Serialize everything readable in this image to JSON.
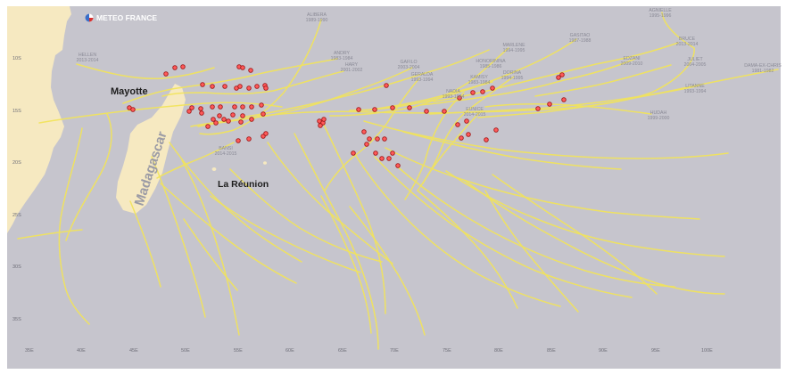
{
  "brand": "METEO FRANCE",
  "colors": {
    "ocean": "#c6c5cd",
    "land": "#f6e9c1",
    "track": "#f2e45a",
    "marker_fill": "#ff5a5a",
    "marker_stroke": "#a01818"
  },
  "places": {
    "mayotte": "Mayotte",
    "madagascar": "Madagascar",
    "reunion": "La Réunion"
  },
  "lat_labels": [
    "10S",
    "15S",
    "20S",
    "25S",
    "30S",
    "35S"
  ],
  "lon_labels": [
    "35E",
    "40E",
    "45E",
    "50E",
    "55E",
    "60E",
    "65E",
    "70E",
    "75E",
    "80E",
    "85E",
    "90E",
    "95E",
    "100E"
  ],
  "storms": [
    {
      "name": "ALIBERA",
      "season": "1989-1990"
    },
    {
      "name": "AGNIELLE",
      "season": "1995-1996"
    },
    {
      "name": "HELLEN",
      "season": "2013-2014"
    },
    {
      "name": "ANDRY",
      "season": "1983-1984"
    },
    {
      "name": "HARY",
      "season": "2001-2002"
    },
    {
      "name": "GAFILO",
      "season": "2003-2004"
    },
    {
      "name": "GERALDA",
      "season": "1993-1994"
    },
    {
      "name": "HONORININA",
      "season": "1985-1986"
    },
    {
      "name": "MARLENE",
      "season": "1994-1995"
    },
    {
      "name": "GASITAO",
      "season": "1987-1988"
    },
    {
      "name": "BRUCE",
      "season": "2013-2014"
    },
    {
      "name": "EDZANI",
      "season": "2009-2010"
    },
    {
      "name": "JULIET",
      "season": "2004-2005"
    },
    {
      "name": "DAMA-EX-CHRIS",
      "season": "1981-1982"
    },
    {
      "name": "KAMISY",
      "season": "1983-1984"
    },
    {
      "name": "DORINA",
      "season": "1994-1995"
    },
    {
      "name": "NADIA",
      "season": "1993-1994"
    },
    {
      "name": "LITANNE",
      "season": "1993-1994"
    },
    {
      "name": "EUNICE",
      "season": "2014-2015"
    },
    {
      "name": "HUDAH",
      "season": "1999-2000"
    },
    {
      "name": "BANSI",
      "season": "2014-2015"
    }
  ]
}
